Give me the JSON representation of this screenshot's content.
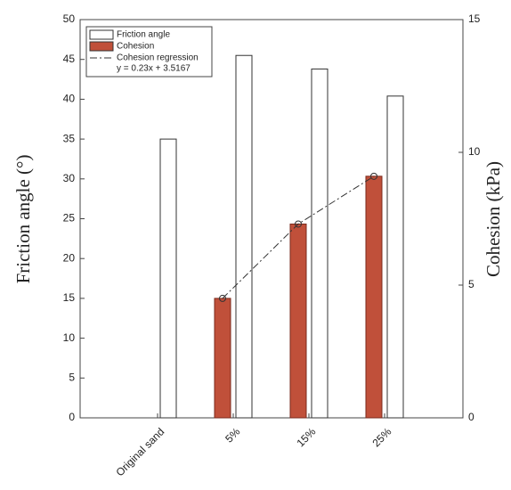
{
  "chart_data": {
    "type": "bar",
    "categories": [
      "Original sand",
      "5%",
      "15%",
      "25%"
    ],
    "ylabel": "Friction angle (°)",
    "y2label": "Cohesion (kPa)",
    "ylim": [
      0,
      50
    ],
    "yticks": [
      0,
      5,
      10,
      15,
      20,
      25,
      30,
      35,
      40,
      45,
      50
    ],
    "y2lim": [
      0,
      15
    ],
    "y2ticks": [
      0,
      5,
      10,
      15
    ],
    "legend": "upper-left",
    "series": [
      {
        "name": "Friction angle",
        "color": "#ffffff",
        "values": [
          35,
          45.5,
          43.8,
          40.4
        ]
      },
      {
        "name": "Cohesion",
        "color": "#c0503a",
        "axis": "y2",
        "values": [
          null,
          4.5,
          7.3,
          9.1
        ]
      },
      {
        "name": "Cohesion regression",
        "type": "line",
        "color": "#333333",
        "axis": "y2",
        "equation": "y = 0.23x + 3.5167",
        "values": [
          null,
          4.5,
          7.3,
          9.1
        ]
      }
    ]
  }
}
